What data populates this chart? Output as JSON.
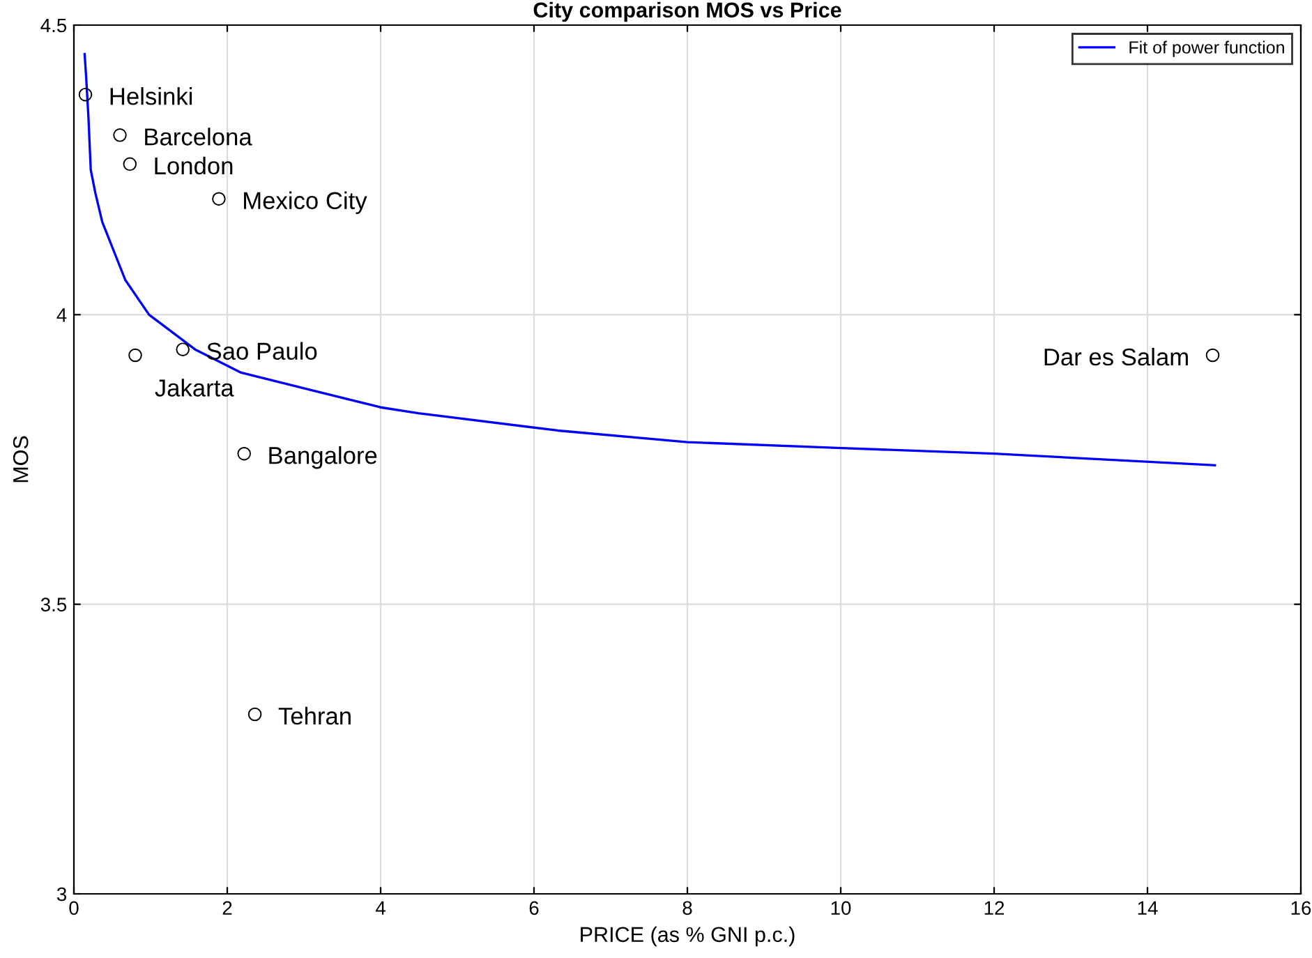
{
  "chart_data": {
    "type": "scatter",
    "title": "City comparison MOS vs Price",
    "xlabel": "PRICE (as % GNI p.c.)",
    "ylabel": "MOS",
    "xlim": [
      0,
      16
    ],
    "xticks": [
      0,
      2,
      4,
      6,
      8,
      10,
      12,
      14,
      16
    ],
    "ylim": [
      3,
      4.5
    ],
    "yticks": [
      3,
      3.5,
      4,
      4.5
    ],
    "grid": true,
    "legend": "top right",
    "series": [
      {
        "marker": "circle",
        "color": "#000000",
        "x": [
          0.15,
          0.6,
          0.73,
          1.89,
          1.42,
          0.8,
          2.22,
          2.36,
          14.85
        ],
        "values": [
          4.38,
          4.31,
          4.26,
          4.2,
          3.94,
          3.93,
          3.76,
          3.31,
          3.93
        ],
        "value_labels": [
          "Helsinki",
          "Barcelona",
          "London",
          "Mexico City",
          "Sao Paulo",
          "Jakarta",
          "Bangalore",
          "Tehran",
          "Dar es Salam"
        ]
      },
      {
        "type": "line",
        "name": "Fit of power function",
        "color": "#0000ff",
        "line_style": "solid",
        "marker": "none",
        "x": [
          0.14,
          0.16,
          0.19,
          0.22,
          0.28,
          0.37,
          0.67,
          0.98,
          1.58,
          2.18,
          3.09,
          4.0,
          4.49,
          6.31,
          8.0,
          9.95,
          12.0,
          14.88
        ],
        "values": [
          4.45,
          4.41,
          4.34,
          4.25,
          4.21,
          4.16,
          4.06,
          4.0,
          3.94,
          3.9,
          3.87,
          3.84,
          3.83,
          3.8,
          3.78,
          3.77,
          3.76,
          3.74
        ]
      }
    ]
  }
}
